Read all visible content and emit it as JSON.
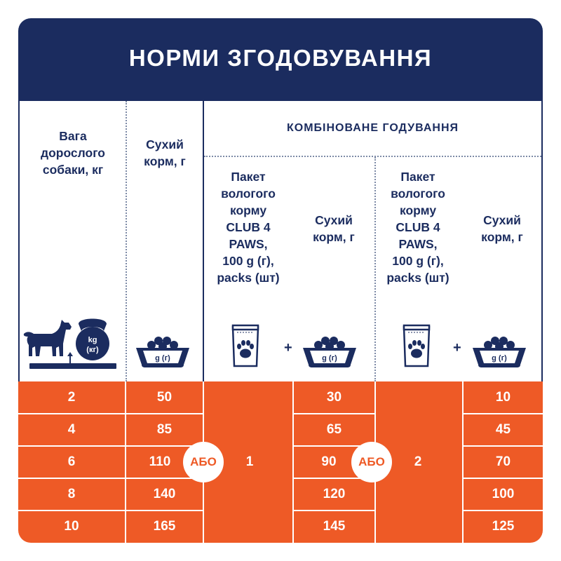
{
  "title": "НОРМИ ЗГОДОВУВАННЯ",
  "headers": {
    "weight": [
      "Вага",
      "дорослого",
      "собаки, кг"
    ],
    "dry_food": [
      "Сухий",
      "корм, г"
    ],
    "combined": "КОМБІНОВАНЕ ГОДУВАННЯ",
    "wet_pack": [
      "Пакет",
      "вологого",
      "корму",
      "CLUB 4",
      "PAWS,",
      "100 g (г),",
      "packs (шт)"
    ],
    "combined_dry": [
      "Сухий",
      "корм, г"
    ]
  },
  "icons": {
    "weight_icon_label_1": "kg",
    "weight_icon_label_2": "(кг)",
    "bowl_label": "g (г)",
    "plus": "+"
  },
  "rows": [
    {
      "weight": "2",
      "dry": "50",
      "dry_combo_1": "30",
      "dry_combo_2": "10"
    },
    {
      "weight": "4",
      "dry": "85",
      "dry_combo_1": "65",
      "dry_combo_2": "45"
    },
    {
      "weight": "6",
      "dry": "110",
      "dry_combo_1": "90",
      "dry_combo_2": "70"
    },
    {
      "weight": "8",
      "dry": "140",
      "dry_combo_1": "120",
      "dry_combo_2": "100"
    },
    {
      "weight": "10",
      "dry": "165",
      "dry_combo_1": "145",
      "dry_combo_2": "125"
    }
  ],
  "packs_option_1": "1",
  "packs_option_2": "2",
  "or_label": "АБО",
  "colors": {
    "navy": "#1b2c5f",
    "orange": "#ee5a26",
    "white": "#ffffff"
  }
}
